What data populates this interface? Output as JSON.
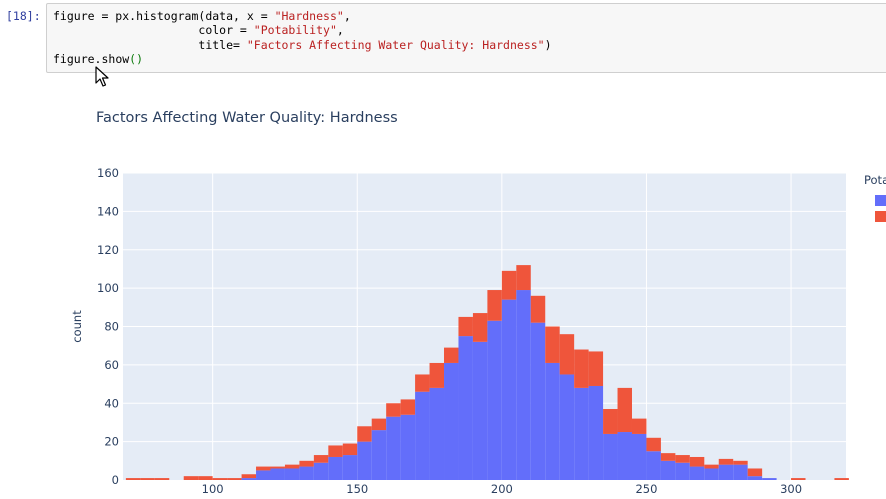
{
  "cell": {
    "prompt": "[18]:",
    "code": {
      "l1_a": "figure = px.histogram(data, x = ",
      "l1_s": "\"Hardness\"",
      "l1_b": ",",
      "l2_a": "                     color = ",
      "l2_s": "\"Potability\"",
      "l2_b": ",",
      "l3_a": "                     title= ",
      "l3_s": "\"Factors Affecting Water Quality: Hardness\"",
      "l3_b": ")",
      "l4_a": "figure.",
      "l4_b": "show",
      "l4_p": "()"
    }
  },
  "colors": {
    "series0": "#636efa",
    "series1": "#ef553b",
    "plot_bg": "#e5ecf6",
    "grid": "#ffffff",
    "text": "#2a3f5f"
  },
  "chart_data": {
    "type": "bar",
    "stacked": true,
    "title": "Factors Affecting Water Quality: Hardness",
    "xlabel": "",
    "ylabel": "count",
    "legend_title": "Pota",
    "legend_position": "right",
    "xlim": [
      69,
      319
    ],
    "ylim": [
      0,
      160
    ],
    "xticks": [
      100,
      150,
      200,
      250,
      300
    ],
    "yticks": [
      0,
      20,
      40,
      60,
      80,
      100,
      120,
      140,
      160
    ],
    "grid": true,
    "bin_width": 5,
    "x": [
      70,
      75,
      80,
      85,
      90,
      95,
      100,
      105,
      110,
      115,
      120,
      125,
      130,
      135,
      140,
      145,
      150,
      155,
      160,
      165,
      170,
      175,
      180,
      185,
      190,
      195,
      200,
      205,
      210,
      215,
      220,
      225,
      230,
      235,
      240,
      245,
      250,
      255,
      260,
      265,
      270,
      275,
      280,
      285,
      290,
      295,
      300,
      305,
      310,
      315
    ],
    "series": [
      {
        "values": [
          0,
          0,
          0,
          0,
          0,
          0,
          0,
          0,
          1,
          5,
          6,
          6,
          7,
          9,
          12,
          13,
          20,
          26,
          33,
          34,
          46,
          48,
          61,
          75,
          72,
          83,
          94,
          99,
          82,
          61,
          55,
          48,
          49,
          24,
          25,
          24,
          15,
          10,
          9,
          7,
          6,
          8,
          8,
          2,
          1,
          0,
          0,
          0,
          0,
          0
        ]
      },
      {
        "values": [
          1,
          1,
          1,
          0,
          2,
          2,
          1,
          1,
          2,
          2,
          1,
          2,
          3,
          4,
          6,
          6,
          8,
          6,
          7,
          8,
          9,
          13,
          8,
          10,
          15,
          16,
          15,
          13,
          14,
          19,
          21,
          20,
          18,
          13,
          23,
          8,
          7,
          4,
          4,
          5,
          2,
          3,
          2,
          4,
          0,
          0,
          1,
          0,
          0,
          1
        ]
      }
    ]
  }
}
